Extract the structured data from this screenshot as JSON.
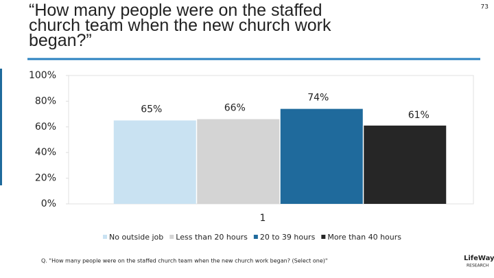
{
  "chart_data": {
    "type": "bar",
    "title": "“How many people were on the staffed church team when the new church work began?”",
    "page_number": "73",
    "categories": [
      "1"
    ],
    "series": [
      {
        "name": "No outside job",
        "color": "#c9e2f2",
        "values": [
          65
        ],
        "value_labels": [
          "65%"
        ]
      },
      {
        "name": "Less than 20 hours",
        "color": "#d4d4d4",
        "values": [
          66
        ],
        "value_labels": [
          "66%"
        ]
      },
      {
        "name": "20 to 39 hours",
        "color": "#1f6a9c",
        "values": [
          74
        ],
        "value_labels": [
          "74%"
        ]
      },
      {
        "name": "More than 40 hours",
        "color": "#262626",
        "values": [
          61
        ],
        "value_labels": [
          "61%"
        ]
      }
    ],
    "ylim": [
      0,
      100
    ],
    "yticks": [
      {
        "value": 0,
        "label": "0%"
      },
      {
        "value": 20,
        "label": "20%"
      },
      {
        "value": 40,
        "label": "40%"
      },
      {
        "value": 60,
        "label": "60%"
      },
      {
        "value": 80,
        "label": "80%"
      },
      {
        "value": 100,
        "label": "100%"
      }
    ],
    "legend": "bottom",
    "footnote": "Q. \"How many people were on the staffed church team when the new church work began? (Select one)\"",
    "logo": [
      "LifeWay",
      "RESEARCH"
    ]
  }
}
